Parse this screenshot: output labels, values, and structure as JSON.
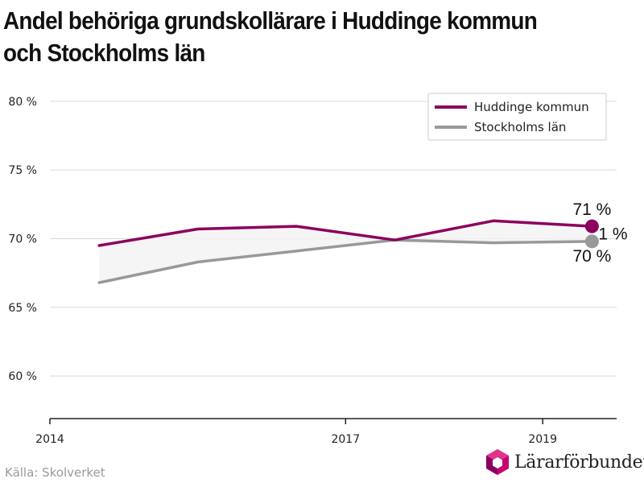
{
  "title_line1": "Andel behöriga grundskollärare i Huddinge kommun",
  "title_line2": "och Stockholms län",
  "source": "Källa: Skolverket",
  "brand": {
    "name": "Lärarförbundet",
    "logo_icon": "hexagon-logo-icon"
  },
  "chart_data": {
    "type": "line",
    "title": "Andel behöriga grundskollärare i Huddinge kommun och Stockholms län",
    "xlabel": "",
    "ylabel": "",
    "x_ticks": [
      2014,
      2017,
      2019
    ],
    "x_tick_labels": [
      "2014",
      "2017",
      "2019"
    ],
    "xlim": [
      2014,
      2019.75
    ],
    "y_ticks": [
      60,
      65,
      70,
      75,
      80
    ],
    "y_tick_labels": [
      "60 %",
      "65 %",
      "70 %",
      "75 %",
      "80 %"
    ],
    "ylim": [
      56.9,
      82.1
    ],
    "x": [
      2014.5,
      2015.5,
      2016.5,
      2017.5,
      2018.5,
      2019.5
    ],
    "series": [
      {
        "name": "Huddinge kommun",
        "color": "#8b005f",
        "values": [
          69.5,
          70.7,
          70.9,
          69.9,
          71.3,
          70.9
        ]
      },
      {
        "name": "Stockholms län",
        "color": "#999999",
        "values": [
          66.8,
          68.3,
          69.1,
          69.9,
          69.7,
          69.8
        ]
      }
    ],
    "end_labels": {
      "upper": "71 %",
      "middle": "1 %",
      "lower": "70 %"
    },
    "fill_between": true,
    "grid": true,
    "legend_position": "top-right"
  }
}
